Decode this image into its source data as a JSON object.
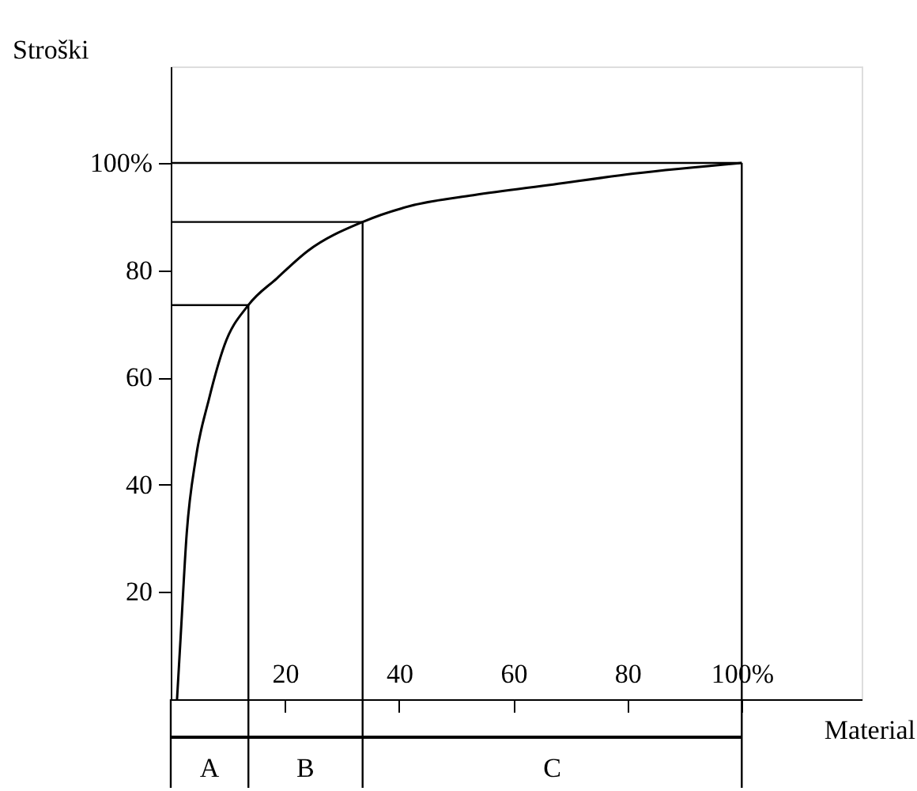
{
  "chart_data": {
    "type": "line",
    "xlabel": "Material",
    "ylabel": "Stroški",
    "series": [
      {
        "color": "#000000",
        "x": [
          1.1,
          1.7,
          2.8,
          4.4,
          6.7,
          9.4,
          13.6,
          18.6,
          24,
          33.6,
          42,
          53,
          67,
          81,
          100
        ],
        "values": [
          0,
          11,
          31,
          45,
          56,
          66,
          73.5,
          78.5,
          83.6,
          89,
          92,
          94,
          96,
          98,
          100
        ]
      }
    ],
    "xlim": [
      0,
      121
    ],
    "ylim": [
      0,
      118
    ],
    "xticks": [
      20,
      40,
      60,
      80,
      {
        "value": 100,
        "label": "100%"
      }
    ],
    "yticks": [
      20,
      40,
      60,
      80,
      {
        "value": 100,
        "label": "100%"
      }
    ],
    "ref_lines": [
      {
        "axis": "y",
        "value": 100
      },
      {
        "axis": "y",
        "value": 73.5
      },
      {
        "axis": "y",
        "value": 89
      },
      {
        "axis": "x",
        "value": 13.6
      },
      {
        "axis": "x",
        "value": 33.6
      },
      {
        "axis": "x",
        "value": 100
      }
    ],
    "annotations": [
      "A",
      "B",
      "C"
    ],
    "grid": false,
    "marker": "none",
    "line_style": "solid"
  }
}
